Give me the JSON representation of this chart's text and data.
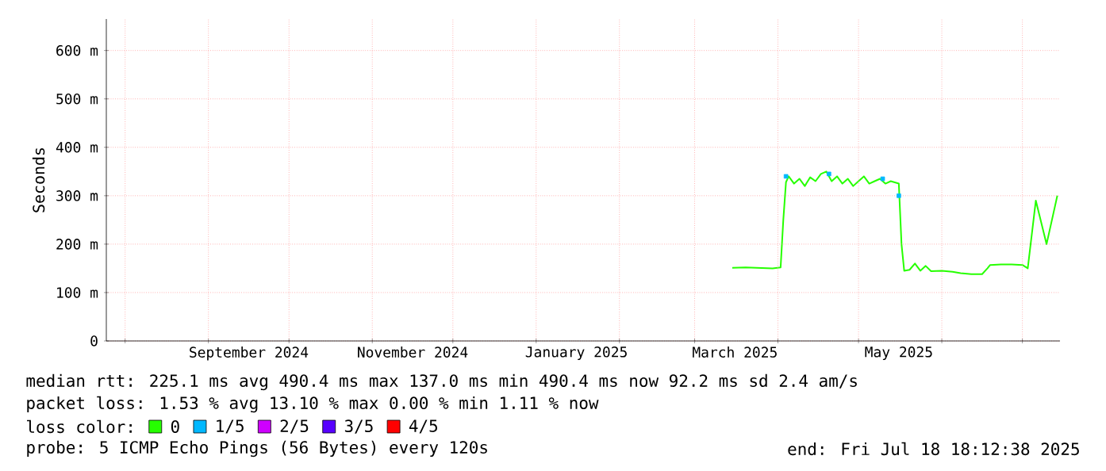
{
  "chart_data": {
    "type": "line",
    "ylabel": "Seconds",
    "xlim": [
      "2024-07-25",
      "2025-07-15"
    ],
    "xticks": [
      {
        "value": "2024-08-01",
        "label": null
      },
      {
        "value": "2024-09-01",
        "label": null
      },
      {
        "value": "2024-10-01",
        "label": null
      },
      {
        "value": "2024-11-01",
        "label": null
      },
      {
        "value": "2024-12-01",
        "label": null
      },
      {
        "value": "2025-01-01",
        "label": null
      },
      {
        "value": "2025-02-01",
        "label": null
      },
      {
        "value": "2025-03-01",
        "label": null
      },
      {
        "value": "2025-04-01",
        "label": null
      },
      {
        "value": "2025-05-01",
        "label": null
      },
      {
        "value": "2025-06-01",
        "label": null
      },
      {
        "value": "2025-07-01",
        "label": null
      },
      {
        "value": "2024-09-16",
        "label": "September 2024"
      },
      {
        "value": "2024-11-16",
        "label": "November 2024"
      },
      {
        "value": "2025-01-16",
        "label": "January 2025"
      },
      {
        "value": "2025-03-16",
        "label": "March 2025"
      },
      {
        "value": "2025-05-16",
        "label": "May 2025"
      }
    ],
    "ylim": [
      0,
      665
    ],
    "yticks": [
      0,
      {
        "value": 100,
        "label": "100 m"
      },
      {
        "value": 200,
        "label": "200 m"
      },
      {
        "value": 300,
        "label": "300 m"
      },
      {
        "value": 400,
        "label": "400 m"
      },
      {
        "value": 500,
        "label": "500 m"
      },
      {
        "value": 600,
        "label": "600 m"
      }
    ],
    "grid": true,
    "legend": "bottom",
    "legend_title": "loss color:",
    "series": [
      {
        "name": "0",
        "color": "#26ff00",
        "x": [
          "2025-03-15",
          "2025-03-20",
          "2025-03-25",
          "2025-03-30",
          "2025-04-02",
          "2025-04-03",
          "2025-04-04",
          "2025-04-05",
          "2025-04-07",
          "2025-04-09",
          "2025-04-11",
          "2025-04-13",
          "2025-04-15",
          "2025-04-17",
          "2025-04-19",
          "2025-04-21",
          "2025-04-23",
          "2025-04-25",
          "2025-04-27",
          "2025-04-29",
          "2025-05-01",
          "2025-05-03",
          "2025-05-05",
          "2025-05-07",
          "2025-05-09",
          "2025-05-11",
          "2025-05-13",
          "2025-05-16",
          "2025-05-17",
          "2025-05-18",
          "2025-05-20",
          "2025-05-22",
          "2025-05-24",
          "2025-05-26",
          "2025-05-28",
          "2025-06-01",
          "2025-06-05",
          "2025-06-08",
          "2025-06-12",
          "2025-06-16",
          "2025-06-18",
          "2025-06-19",
          "2025-06-23",
          "2025-06-27",
          "2025-07-01",
          "2025-07-03",
          "2025-07-06",
          "2025-07-10",
          "2025-07-14"
        ],
        "values": [
          151,
          152,
          151,
          150,
          152,
          250,
          328,
          340,
          325,
          335,
          320,
          338,
          330,
          345,
          350,
          330,
          340,
          325,
          335,
          320,
          330,
          340,
          325,
          330,
          335,
          325,
          330,
          325,
          200,
          145,
          147,
          160,
          145,
          155,
          144,
          145,
          143,
          140,
          138,
          138,
          150,
          157,
          158,
          158,
          157,
          150,
          290,
          200,
          300
        ]
      },
      {
        "name": "1/5",
        "color": "#00b8ff",
        "type": "scatter",
        "marker": "square",
        "x": [
          "2025-04-04",
          "2025-04-20",
          "2025-05-10",
          "2025-05-16"
        ],
        "values": [
          340,
          345,
          335,
          300
        ]
      },
      {
        "name": "2/5",
        "color": "#ce00ff"
      },
      {
        "name": "3/5",
        "color": "#5700ff"
      },
      {
        "name": "4/5",
        "color": "#ff0000"
      }
    ],
    "annotations": [
      "median rtt:  225.1 ms avg  490.4 ms max  137.0 ms min  490.4 ms now  92.2 ms sd  2.4   am/s",
      "packet loss: 1.53 % avg  13.10 % max  0.00 % min  1.11 % now",
      "probe:       5 ICMP Echo Pings (56 Bytes) every 120s",
      "end: Fri Jul 18 18:12:38 2025"
    ]
  }
}
